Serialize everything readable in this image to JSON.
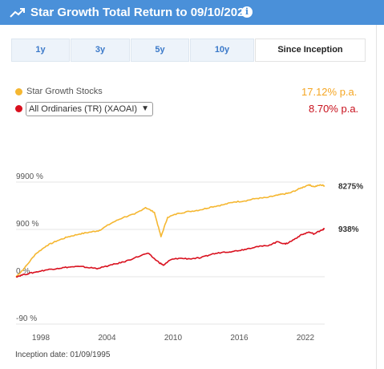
{
  "header": {
    "title": "Star Growth Total Return  to 09/10/2023",
    "info_icon": "info-icon",
    "trend_icon": "trend-up-icon",
    "background": "#4a90d9"
  },
  "tabs": [
    {
      "label": "1y",
      "active": false
    },
    {
      "label": "3y",
      "active": false
    },
    {
      "label": "5y",
      "active": false
    },
    {
      "label": "10y",
      "active": false
    },
    {
      "label": "Since Inception",
      "active": true
    }
  ],
  "legend": {
    "fund": {
      "label": "Star Growth Stocks",
      "value": "17.12% p.a.",
      "color": "#f5b731"
    },
    "benchmark": {
      "selected": "All Ordinaries (TR) (XAOAI)",
      "value": "8.70% p.a.",
      "color": "#d9101e"
    }
  },
  "chart_data": {
    "type": "line",
    "y_scale": "log",
    "y_ticks": [
      "9900 %",
      "900 %",
      "0 %",
      "-90 %"
    ],
    "x_ticks": [
      "1998",
      "2004",
      "2010",
      "2016",
      "2022"
    ],
    "series": [
      {
        "name": "Star Growth Stocks",
        "color": "#f5b731",
        "end_label": "8275%",
        "x": [
          1995.75,
          1996.5,
          1997.5,
          1998.5,
          1999.5,
          2000.5,
          2001.5,
          2002.5,
          2003.3,
          2004.5,
          2005.5,
          2006.5,
          2007.5,
          2008.3,
          2008.9,
          2009.5,
          2010.5,
          2011.5,
          2012.5,
          2013.5,
          2014.5,
          2015.5,
          2016.5,
          2017.5,
          2018.5,
          2019.5,
          2020.2,
          2020.6,
          2021.5,
          2022.3,
          2022.8,
          2023.4,
          2023.75
        ],
        "y": [
          0,
          50,
          200,
          350,
          480,
          600,
          700,
          780,
          850,
          1300,
          1700,
          2000,
          2800,
          2200,
          600,
          1700,
          2100,
          2300,
          2500,
          2900,
          3200,
          3700,
          3900,
          4400,
          4600,
          5200,
          5600,
          5800,
          7200,
          8700,
          7900,
          8600,
          8275
        ]
      },
      {
        "name": "All Ordinaries (TR) (XAOAI)",
        "color": "#d9101e",
        "end_label": "938%",
        "x": [
          1995.75,
          1996.5,
          1997.5,
          1998.5,
          1999.5,
          2000.5,
          2001.5,
          2002.5,
          2003.2,
          2004.5,
          2005.5,
          2006.5,
          2007.7,
          2008.5,
          2009.1,
          2009.8,
          2010.5,
          2011.5,
          2012.5,
          2013.5,
          2014.5,
          2015.5,
          2016.5,
          2017.5,
          2018.5,
          2019.5,
          2020.2,
          2020.8,
          2021.5,
          2022.3,
          2022.8,
          2023.4,
          2023.75
        ],
        "y": [
          0,
          12,
          25,
          40,
          50,
          60,
          65,
          55,
          50,
          80,
          105,
          150,
          215,
          120,
          75,
          130,
          145,
          140,
          150,
          200,
          230,
          245,
          280,
          330,
          350,
          450,
          390,
          480,
          640,
          780,
          700,
          860,
          938
        ]
      }
    ]
  },
  "footnote": "Inception date: 01/09/1995"
}
